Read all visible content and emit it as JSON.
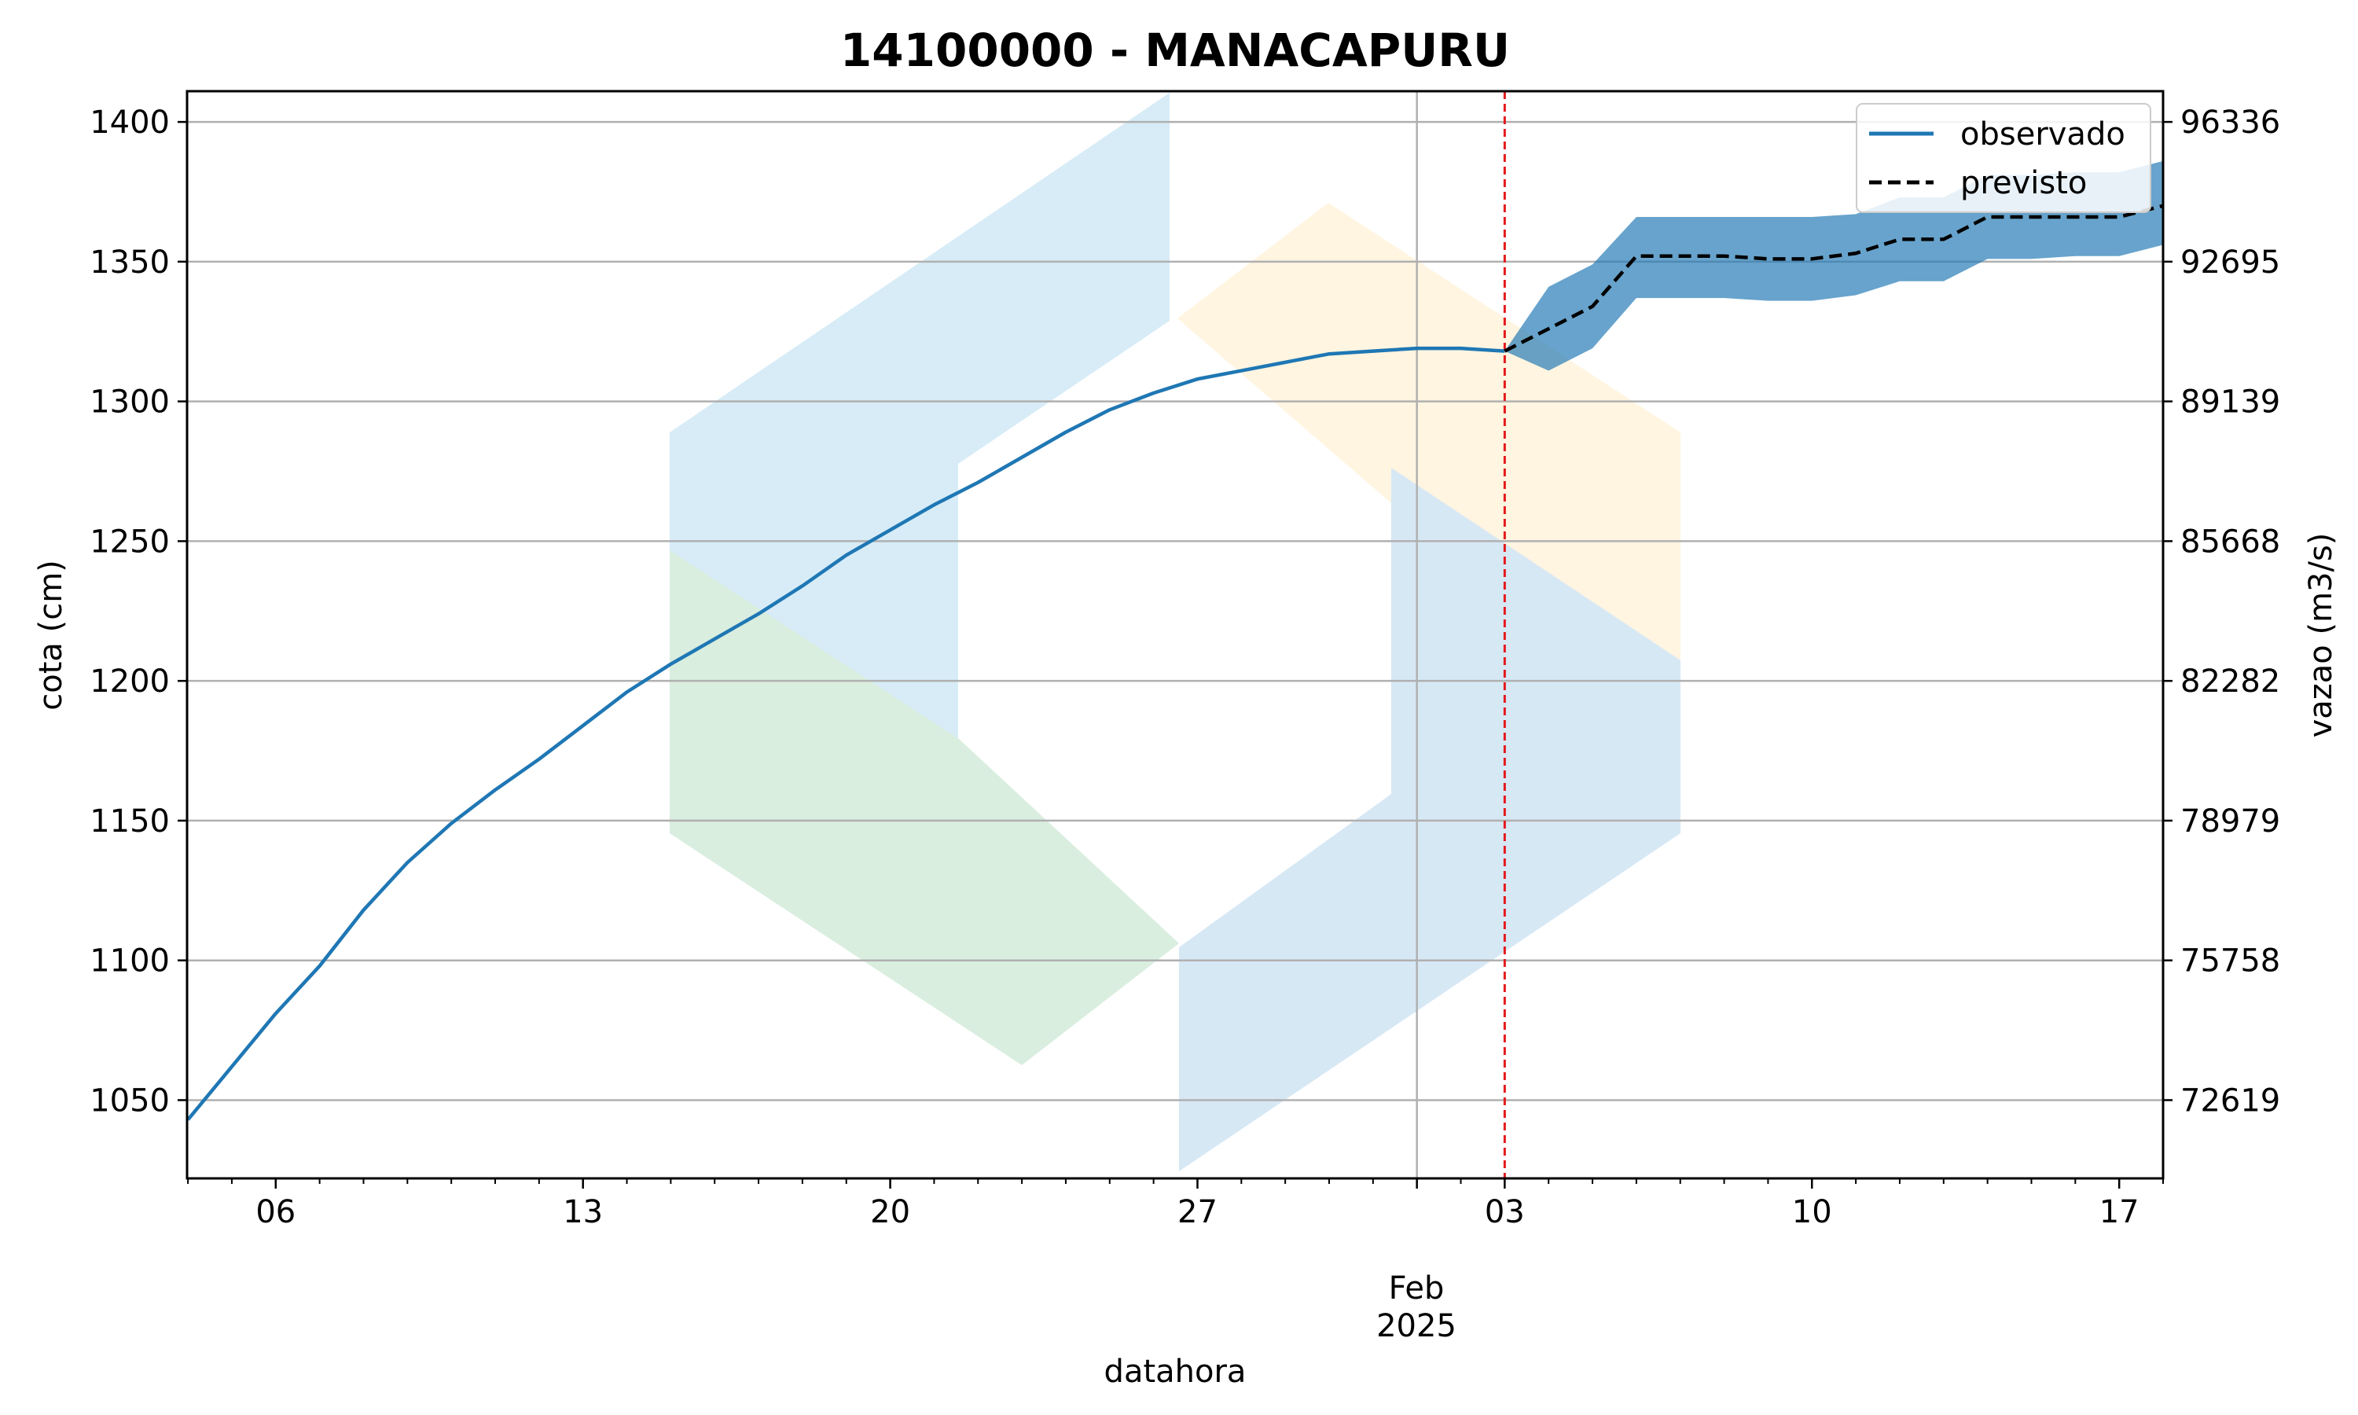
{
  "chart_data": {
    "type": "line",
    "title": "14100000 - MANACAPURU",
    "xlabel": "datahora",
    "ylabel_left": "cota (cm)",
    "ylabel_right": "vazao (m3/s)",
    "x_range": [
      "2025-01-04",
      "2025-02-18"
    ],
    "ylim": [
      1022,
      1411
    ],
    "grid": true,
    "legend_position": "top-right",
    "month_label": "Feb",
    "year_label": "2025",
    "x_major_ticks": [
      {
        "date": "2025-01-06",
        "label": "06"
      },
      {
        "date": "2025-01-13",
        "label": "13"
      },
      {
        "date": "2025-01-20",
        "label": "20"
      },
      {
        "date": "2025-01-27",
        "label": "27"
      },
      {
        "date": "2025-02-03",
        "label": "03"
      },
      {
        "date": "2025-02-10",
        "label": "10"
      },
      {
        "date": "2025-02-17",
        "label": "17"
      }
    ],
    "month_gridline_date": "2025-02-01",
    "forecast_start_date": "2025-02-03",
    "y_ticks_left": [
      1050,
      1100,
      1150,
      1200,
      1250,
      1300,
      1350,
      1400
    ],
    "y_ticks_right": [
      {
        "cota": 1050,
        "label": "72619"
      },
      {
        "cota": 1100,
        "label": "75758"
      },
      {
        "cota": 1150,
        "label": "78979"
      },
      {
        "cota": 1200,
        "label": "82282"
      },
      {
        "cota": 1250,
        "label": "85668"
      },
      {
        "cota": 1300,
        "label": "89139"
      },
      {
        "cota": 1350,
        "label": "92695"
      },
      {
        "cota": 1400,
        "label": "96336"
      }
    ],
    "series": [
      {
        "name": "observado",
        "color": "#1f77b4",
        "style": "solid",
        "points": [
          [
            "2025-01-04",
            1043
          ],
          [
            "2025-01-05",
            1062
          ],
          [
            "2025-01-06",
            1081
          ],
          [
            "2025-01-07",
            1098
          ],
          [
            "2025-01-08",
            1118
          ],
          [
            "2025-01-09",
            1135
          ],
          [
            "2025-01-10",
            1149
          ],
          [
            "2025-01-11",
            1161
          ],
          [
            "2025-01-12",
            1172
          ],
          [
            "2025-01-13",
            1184
          ],
          [
            "2025-01-14",
            1196
          ],
          [
            "2025-01-15",
            1206
          ],
          [
            "2025-01-16",
            1215
          ],
          [
            "2025-01-17",
            1224
          ],
          [
            "2025-01-18",
            1234
          ],
          [
            "2025-01-19",
            1245
          ],
          [
            "2025-01-20",
            1254
          ],
          [
            "2025-01-21",
            1263
          ],
          [
            "2025-01-22",
            1271
          ],
          [
            "2025-01-23",
            1280
          ],
          [
            "2025-01-24",
            1289
          ],
          [
            "2025-01-25",
            1297
          ],
          [
            "2025-01-26",
            1303
          ],
          [
            "2025-01-27",
            1308
          ],
          [
            "2025-01-28",
            1311
          ],
          [
            "2025-01-29",
            1314
          ],
          [
            "2025-01-30",
            1317
          ],
          [
            "2025-01-31",
            1318
          ],
          [
            "2025-02-01",
            1319
          ],
          [
            "2025-02-02",
            1319
          ],
          [
            "2025-02-03",
            1318
          ]
        ]
      },
      {
        "name": "previsto",
        "color": "#000000",
        "style": "dashed",
        "points": [
          [
            "2025-02-03",
            1318
          ],
          [
            "2025-02-04",
            1326
          ],
          [
            "2025-02-05",
            1334
          ],
          [
            "2025-02-06",
            1352
          ],
          [
            "2025-02-07",
            1352
          ],
          [
            "2025-02-08",
            1352
          ],
          [
            "2025-02-09",
            1351
          ],
          [
            "2025-02-10",
            1351
          ],
          [
            "2025-02-11",
            1353
          ],
          [
            "2025-02-12",
            1358
          ],
          [
            "2025-02-13",
            1358
          ],
          [
            "2025-02-14",
            1366
          ],
          [
            "2025-02-15",
            1366
          ],
          [
            "2025-02-16",
            1366
          ],
          [
            "2025-02-17",
            1366
          ],
          [
            "2025-02-18",
            1370
          ]
        ]
      }
    ],
    "forecast_band": {
      "color": "#1f77b4",
      "upper": [
        [
          "2025-02-03",
          1318
        ],
        [
          "2025-02-04",
          1341
        ],
        [
          "2025-02-05",
          1349
        ],
        [
          "2025-02-06",
          1366
        ],
        [
          "2025-02-07",
          1366
        ],
        [
          "2025-02-08",
          1366
        ],
        [
          "2025-02-09",
          1366
        ],
        [
          "2025-02-10",
          1366
        ],
        [
          "2025-02-11",
          1367
        ],
        [
          "2025-02-12",
          1373
        ],
        [
          "2025-02-13",
          1373
        ],
        [
          "2025-02-14",
          1381
        ],
        [
          "2025-02-15",
          1381
        ],
        [
          "2025-02-16",
          1382
        ],
        [
          "2025-02-17",
          1382
        ],
        [
          "2025-02-18",
          1386
        ]
      ],
      "lower": [
        [
          "2025-02-03",
          1318
        ],
        [
          "2025-02-04",
          1311
        ],
        [
          "2025-02-05",
          1319
        ],
        [
          "2025-02-06",
          1337
        ],
        [
          "2025-02-07",
          1337
        ],
        [
          "2025-02-08",
          1337
        ],
        [
          "2025-02-09",
          1336
        ],
        [
          "2025-02-10",
          1336
        ],
        [
          "2025-02-11",
          1338
        ],
        [
          "2025-02-12",
          1343
        ],
        [
          "2025-02-13",
          1343
        ],
        [
          "2025-02-14",
          1351
        ],
        [
          "2025-02-15",
          1351
        ],
        [
          "2025-02-16",
          1352
        ],
        [
          "2025-02-17",
          1352
        ],
        [
          "2025-02-18",
          1356
        ]
      ]
    }
  }
}
